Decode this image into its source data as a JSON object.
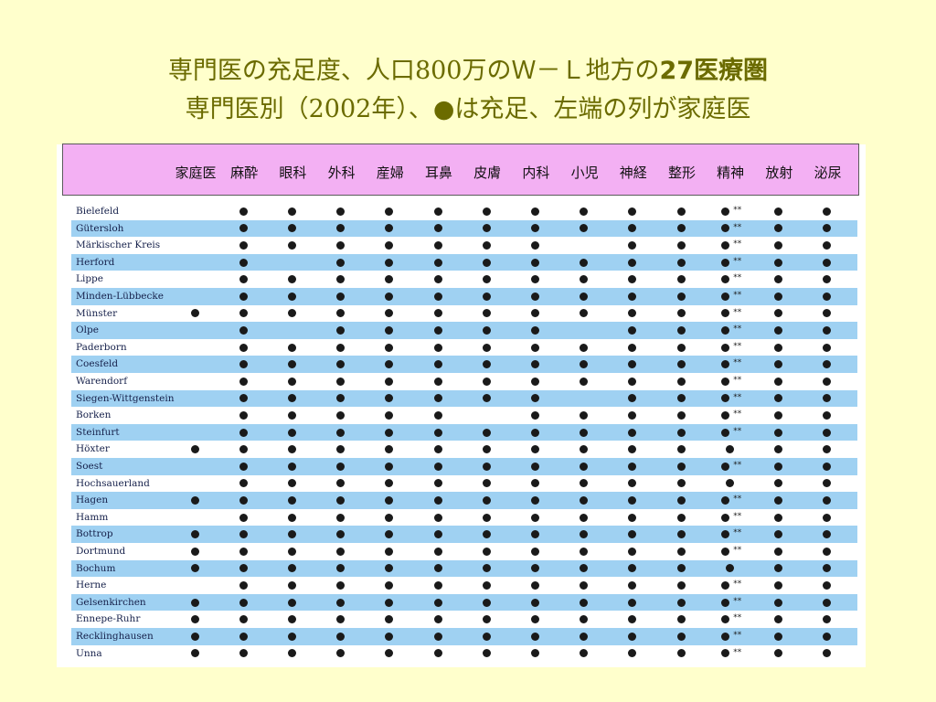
{
  "title": {
    "line1": {
      "part1": "専門医の充足度、",
      "part2": "人口",
      "num": "800",
      "part3": "万のＷ－Ｌ地方の",
      "bold": "27医療圏"
    },
    "line2": {
      "part1": "専門医別（",
      "year": "2002",
      "part2": "年）、●は充足、左端の列が家庭医"
    }
  },
  "table": {
    "columns": [
      "家庭医",
      "麻酔",
      "眼科",
      "外科",
      "産婦",
      "耳鼻",
      "皮膚",
      "内科",
      "小児",
      "神経",
      "整形",
      "精神",
      "放射",
      "泌尿"
    ],
    "psych_marker": "**",
    "rows": [
      {
        "name": "Bielefeld",
        "marks": [
          0,
          1,
          1,
          1,
          1,
          1,
          1,
          1,
          1,
          1,
          1,
          2,
          1,
          1
        ]
      },
      {
        "name": "Gütersloh",
        "marks": [
          0,
          1,
          1,
          1,
          1,
          1,
          1,
          1,
          1,
          1,
          1,
          2,
          1,
          1
        ]
      },
      {
        "name": "Märkischer Kreis",
        "marks": [
          0,
          1,
          1,
          1,
          1,
          1,
          1,
          1,
          0,
          1,
          1,
          2,
          1,
          1
        ]
      },
      {
        "name": "Herford",
        "marks": [
          0,
          1,
          0,
          1,
          1,
          1,
          1,
          1,
          1,
          1,
          1,
          2,
          1,
          1
        ]
      },
      {
        "name": "Lippe",
        "marks": [
          0,
          1,
          1,
          1,
          1,
          1,
          1,
          1,
          1,
          1,
          1,
          2,
          1,
          1
        ]
      },
      {
        "name": "Minden-Lübbecke",
        "marks": [
          0,
          1,
          1,
          1,
          1,
          1,
          1,
          1,
          1,
          1,
          1,
          2,
          1,
          1
        ]
      },
      {
        "name": "Münster",
        "marks": [
          1,
          1,
          1,
          1,
          1,
          1,
          1,
          1,
          1,
          1,
          1,
          2,
          1,
          1
        ]
      },
      {
        "name": "Olpe",
        "marks": [
          0,
          1,
          0,
          1,
          1,
          1,
          1,
          1,
          0,
          1,
          1,
          2,
          1,
          1
        ]
      },
      {
        "name": "Paderborn",
        "marks": [
          0,
          1,
          1,
          1,
          1,
          1,
          1,
          1,
          1,
          1,
          1,
          2,
          1,
          1
        ]
      },
      {
        "name": "Coesfeld",
        "marks": [
          0,
          1,
          1,
          1,
          1,
          1,
          1,
          1,
          1,
          1,
          1,
          2,
          1,
          1
        ]
      },
      {
        "name": "Warendorf",
        "marks": [
          0,
          1,
          1,
          1,
          1,
          1,
          1,
          1,
          1,
          1,
          1,
          2,
          1,
          1
        ]
      },
      {
        "name": "Siegen-Wittgenstein",
        "marks": [
          0,
          1,
          1,
          1,
          1,
          1,
          1,
          1,
          0,
          1,
          1,
          2,
          1,
          1
        ]
      },
      {
        "name": "Borken",
        "marks": [
          0,
          1,
          1,
          1,
          1,
          1,
          0,
          1,
          1,
          1,
          1,
          2,
          1,
          1
        ]
      },
      {
        "name": "Steinfurt",
        "marks": [
          0,
          1,
          1,
          1,
          1,
          1,
          1,
          1,
          1,
          1,
          1,
          2,
          1,
          1
        ]
      },
      {
        "name": "Höxter",
        "marks": [
          1,
          1,
          1,
          1,
          1,
          1,
          1,
          1,
          1,
          1,
          1,
          1,
          1,
          1
        ]
      },
      {
        "name": "Soest",
        "marks": [
          0,
          1,
          1,
          1,
          1,
          1,
          1,
          1,
          1,
          1,
          1,
          2,
          1,
          1
        ]
      },
      {
        "name": "Hochsauerland",
        "marks": [
          0,
          1,
          1,
          1,
          1,
          1,
          1,
          1,
          1,
          1,
          1,
          1,
          1,
          1
        ]
      },
      {
        "name": "Hagen",
        "marks": [
          1,
          1,
          1,
          1,
          1,
          1,
          1,
          1,
          1,
          1,
          1,
          2,
          1,
          1
        ]
      },
      {
        "name": "Hamm",
        "marks": [
          0,
          1,
          1,
          1,
          1,
          1,
          1,
          1,
          1,
          1,
          1,
          2,
          1,
          1
        ]
      },
      {
        "name": "Bottrop",
        "marks": [
          1,
          1,
          1,
          1,
          1,
          1,
          1,
          1,
          1,
          1,
          1,
          2,
          1,
          1
        ]
      },
      {
        "name": "Dortmund",
        "marks": [
          1,
          1,
          1,
          1,
          1,
          1,
          1,
          1,
          1,
          1,
          1,
          2,
          1,
          1
        ]
      },
      {
        "name": "Bochum",
        "marks": [
          1,
          1,
          1,
          1,
          1,
          1,
          1,
          1,
          1,
          1,
          1,
          1,
          1,
          1
        ]
      },
      {
        "name": "Herne",
        "marks": [
          0,
          1,
          1,
          1,
          1,
          1,
          1,
          1,
          1,
          1,
          1,
          2,
          1,
          1
        ]
      },
      {
        "name": "Gelsenkirchen",
        "marks": [
          1,
          1,
          1,
          1,
          1,
          1,
          1,
          1,
          1,
          1,
          1,
          2,
          1,
          1
        ]
      },
      {
        "name": "Ennepe-Ruhr",
        "marks": [
          1,
          1,
          1,
          1,
          1,
          1,
          1,
          1,
          1,
          1,
          1,
          2,
          1,
          1
        ]
      },
      {
        "name": "Recklinghausen",
        "marks": [
          1,
          1,
          1,
          1,
          1,
          1,
          1,
          1,
          1,
          1,
          1,
          2,
          1,
          1
        ]
      },
      {
        "name": "Unna",
        "marks": [
          1,
          1,
          1,
          1,
          1,
          1,
          1,
          1,
          1,
          1,
          1,
          2,
          1,
          1
        ]
      }
    ]
  }
}
